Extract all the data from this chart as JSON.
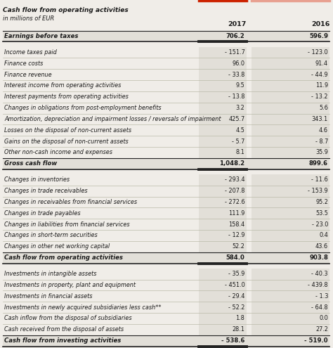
{
  "title_line1": "Cash flow from operating activities",
  "title_line2": "in millions of EUR",
  "col_headers": [
    "2017",
    "2016"
  ],
  "rows": [
    {
      "label": "Earnings before taxes",
      "v2017": "706.2",
      "v2016": "596.9",
      "bold": true,
      "header_row": true
    },
    {
      "label": "",
      "v2017": "",
      "v2016": "",
      "bold": false,
      "spacer": true
    },
    {
      "label": "Income taxes paid",
      "v2017": "- 151.7",
      "v2016": "- 123.0",
      "bold": false
    },
    {
      "label": "Finance costs",
      "v2017": "96.0",
      "v2016": "91.4",
      "bold": false
    },
    {
      "label": "Finance revenue",
      "v2017": "- 33.8",
      "v2016": "- 44.9",
      "bold": false
    },
    {
      "label": "Interest income from operating activities",
      "v2017": "9.5",
      "v2016": "11.9",
      "bold": false
    },
    {
      "label": "Interest payments from operating activities",
      "v2017": "- 13.8",
      "v2016": "- 13.2",
      "bold": false
    },
    {
      "label": "Changes in obligations from post-employment benefits",
      "v2017": "3.2",
      "v2016": "5.6",
      "bold": false
    },
    {
      "label": "Amortization, depreciation and impairment losses / reversals of impairment",
      "v2017": "425.7",
      "v2016": "343.1",
      "bold": false
    },
    {
      "label": "Losses on the disposal of non-current assets",
      "v2017": "4.5",
      "v2016": "4.6",
      "bold": false
    },
    {
      "label": "Gains on the disposal of non-current assets",
      "v2017": "- 5.7",
      "v2016": "- 8.7",
      "bold": false
    },
    {
      "label": "Other non-cash income and expenses",
      "v2017": "8.1",
      "v2016": "35.9",
      "bold": false
    },
    {
      "label": "Gross cash flow",
      "v2017": "1,048.2",
      "v2016": "899.6",
      "bold": true,
      "total_row": true
    },
    {
      "label": "",
      "v2017": "",
      "v2016": "",
      "bold": false,
      "spacer": true
    },
    {
      "label": "Changes in inventories",
      "v2017": "- 293.4",
      "v2016": "- 11.6",
      "bold": false
    },
    {
      "label": "Changes in trade receivables",
      "v2017": "- 207.8",
      "v2016": "- 153.9",
      "bold": false
    },
    {
      "label": "Changes in receivables from financial services",
      "v2017": "- 272.6",
      "v2016": "95.2",
      "bold": false
    },
    {
      "label": "Changes in trade payables",
      "v2017": "111.9",
      "v2016": "53.5",
      "bold": false
    },
    {
      "label": "Changes in liabilities from financial services",
      "v2017": "158.4",
      "v2016": "- 23.0",
      "bold": false
    },
    {
      "label": "Changes in short-term securities",
      "v2017": "- 12.9",
      "v2016": "0.4",
      "bold": false
    },
    {
      "label": "Changes in other net working capital",
      "v2017": "52.2",
      "v2016": "43.6",
      "bold": false
    },
    {
      "label": "Cash flow from operating activities",
      "v2017": "584.0",
      "v2016": "903.8",
      "bold": true,
      "total_row": true
    },
    {
      "label": "",
      "v2017": "",
      "v2016": "",
      "bold": false,
      "spacer": true
    },
    {
      "label": "Investments in intangible assets",
      "v2017": "- 35.9",
      "v2016": "- 40.3",
      "bold": false
    },
    {
      "label": "Investments in property, plant and equipment",
      "v2017": "- 451.0",
      "v2016": "- 439.8",
      "bold": false
    },
    {
      "label": "Investments in financial assets",
      "v2017": "- 29.4",
      "v2016": "- 1.3",
      "bold": false
    },
    {
      "label": "Investments in newly acquired subsidiaries less cash**",
      "v2017": "- 52.2",
      "v2016": "- 64.8",
      "bold": false
    },
    {
      "label": "Cash inflow from the disposal of subsidiaries",
      "v2017": "1.8",
      "v2016": "0.0",
      "bold": false
    },
    {
      "label": "Cash received from the disposal of assets",
      "v2017": "28.1",
      "v2016": "27.2",
      "bold": false
    },
    {
      "label": "Cash flow from investing activities",
      "v2017": "- 538.6",
      "v2016": "- 519.0",
      "bold": true,
      "total_row": true,
      "last_row": true
    }
  ],
  "bg_color": "#f0ede8",
  "total_row_bg": "#e2dfd8",
  "text_color": "#1a1a1a",
  "line_color": "#bbbbaa",
  "bold_line_color": "#222222",
  "red_line_color": "#cc2200",
  "pink_line_color": "#e8a090"
}
